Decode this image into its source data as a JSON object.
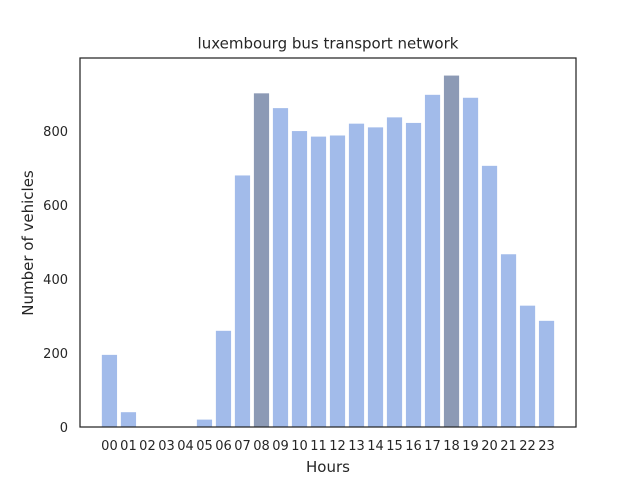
{
  "chart_data": {
    "type": "bar",
    "title": "luxembourg bus transport network",
    "xlabel": "Hours",
    "ylabel": "Number of vehicles",
    "categories": [
      "00",
      "01",
      "02",
      "03",
      "04",
      "05",
      "06",
      "07",
      "08",
      "09",
      "10",
      "11",
      "12",
      "13",
      "14",
      "15",
      "16",
      "17",
      "18",
      "19",
      "20",
      "21",
      "22",
      "23"
    ],
    "values": [
      195,
      40,
      0,
      0,
      0,
      20,
      260,
      680,
      902,
      862,
      800,
      785,
      788,
      820,
      810,
      837,
      822,
      898,
      950,
      890,
      706,
      467,
      328,
      287
    ],
    "highlight_categories": [
      "08",
      "18"
    ],
    "ylim": [
      0,
      997.5
    ],
    "yticks": [
      0,
      200,
      400,
      600,
      800
    ],
    "grid": false,
    "legend": "none",
    "colors": {
      "bar": "#a2bbea",
      "highlight": "#8c9ab5",
      "axes": "#262626",
      "text": "#262626"
    }
  }
}
